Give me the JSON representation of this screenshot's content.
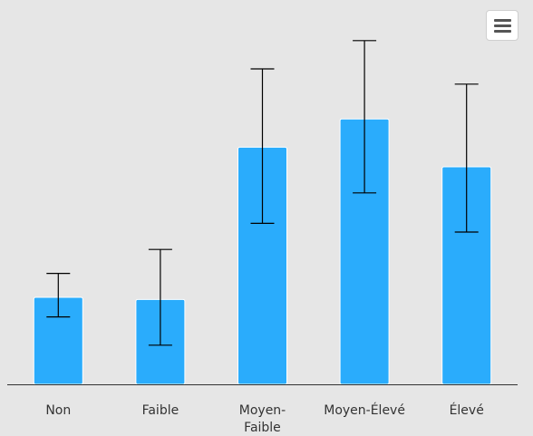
{
  "chart_data": {
    "type": "bar",
    "title": "",
    "xlabel": "",
    "ylabel": "",
    "categories": [
      [
        "Non"
      ],
      [
        "Faible"
      ],
      [
        "Moyen-",
        "Faible"
      ],
      [
        "Moyen-Élevé"
      ],
      [
        "Élevé"
      ]
    ],
    "values": [
      2.0,
      1.95,
      5.45,
      6.1,
      5.0
    ],
    "error_low": [
      1.55,
      0.9,
      3.7,
      4.4,
      3.5
    ],
    "error_high": [
      2.55,
      3.1,
      7.25,
      7.9,
      6.9
    ],
    "ylim": [
      0,
      8.0
    ],
    "grid": false,
    "legend": "none",
    "colors": {
      "bar": "#2aacfc",
      "error_bar": "#000000",
      "axis": "#333333",
      "background": "#e6e6e6"
    }
  },
  "toolbar": {
    "menu_icon": "hamburger-menu-icon"
  }
}
